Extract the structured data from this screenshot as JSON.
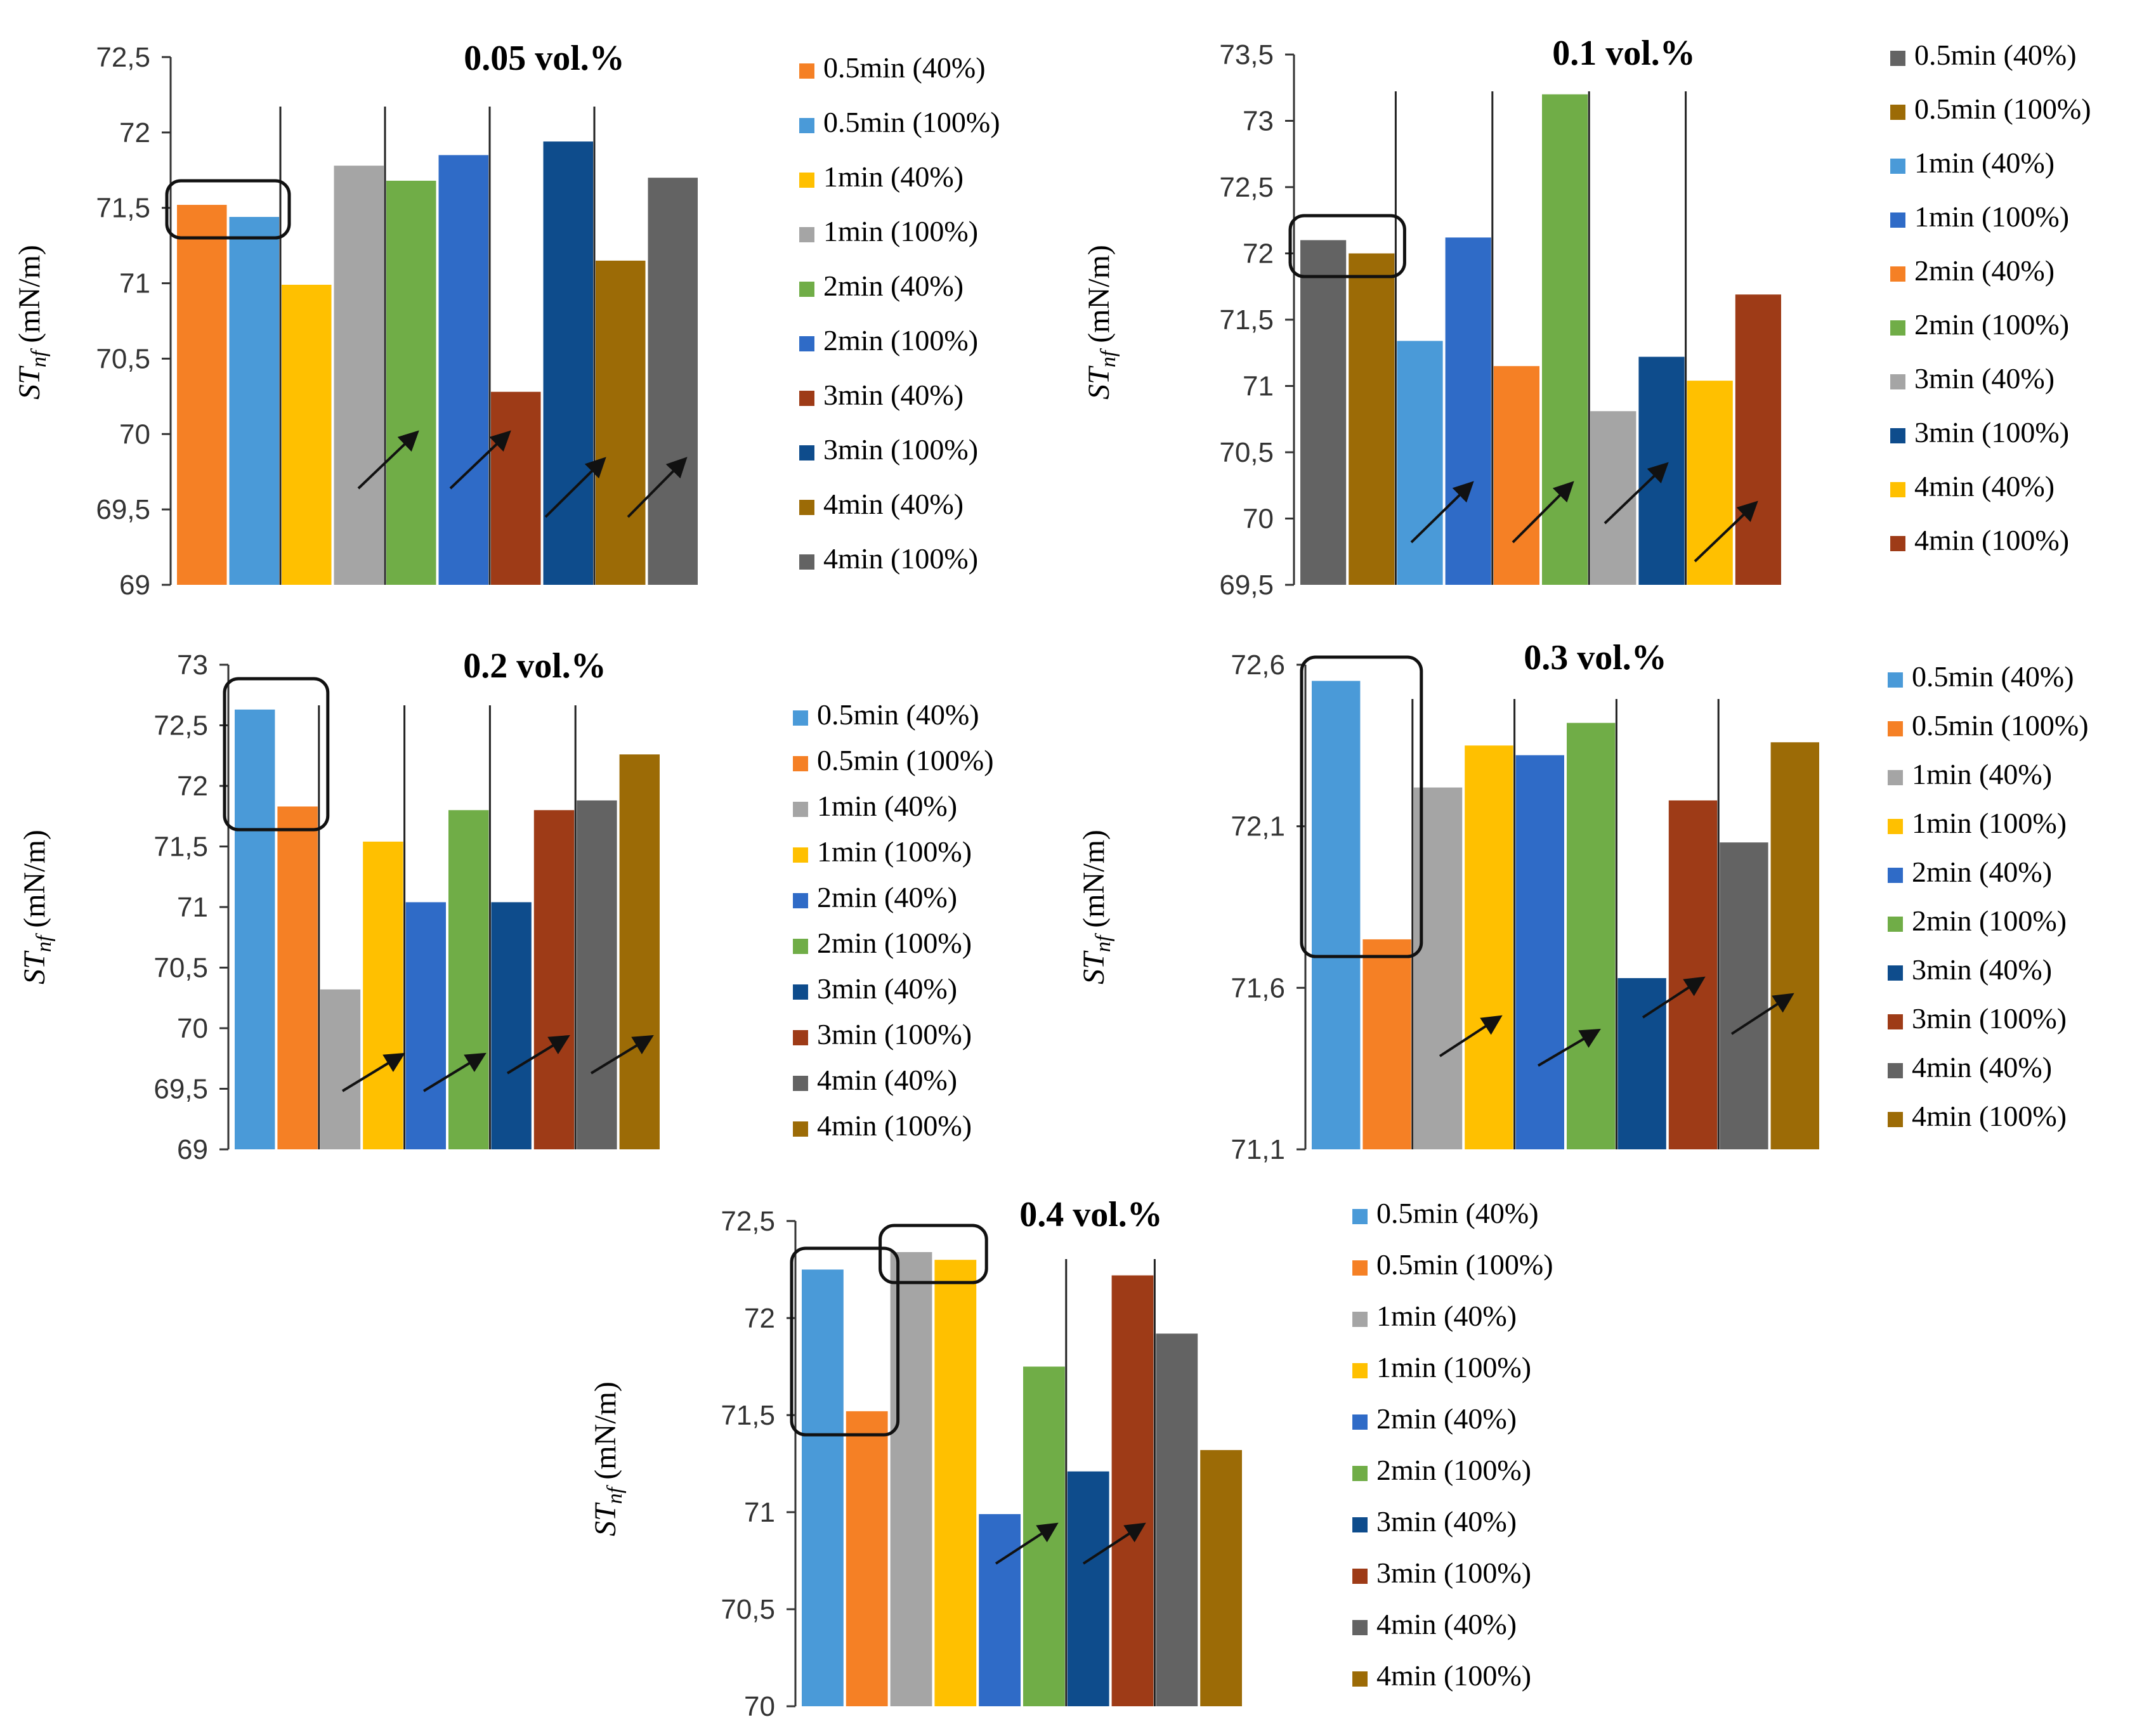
{
  "chart_data": [
    {
      "type": "bar",
      "title": "0.05 vol.%",
      "ylabel_main": "ST",
      "ylabel_sub": "nf",
      "ylabel_unit": " (mN/m)",
      "xlabel": "",
      "ylim": [
        69,
        72.5
      ],
      "yticks": [
        "69",
        "69,5",
        "70",
        "70,5",
        "71",
        "71,5",
        "72",
        "72,5"
      ],
      "series": [
        {
          "name": "0.5min (40%)",
          "value": 71.52,
          "color": "#F58025"
        },
        {
          "name": "0.5min (100%)",
          "value": 71.44,
          "color": "#4A9AD8"
        },
        {
          "name": "1min (40%)",
          "value": 70.99,
          "color": "#FFC000"
        },
        {
          "name": "1min (100%)",
          "value": 71.78,
          "color": "#A5A5A5"
        },
        {
          "name": "2min (40%)",
          "value": 71.68,
          "color": "#70AD47"
        },
        {
          "name": "2min (100%)",
          "value": 71.85,
          "color": "#2F6BC7"
        },
        {
          "name": "3min (40%)",
          "value": 70.28,
          "color": "#9E3B17"
        },
        {
          "name": "3min (100%)",
          "value": 71.94,
          "color": "#0E4C8C"
        },
        {
          "name": "4min (40%)",
          "value": 71.15,
          "color": "#9C6B06"
        },
        {
          "name": "4min (100%)",
          "value": 71.7,
          "color": "#636363"
        }
      ]
    },
    {
      "type": "bar",
      "title": "0.1 vol.%",
      "ylabel_main": "ST",
      "ylabel_sub": "nf",
      "ylabel_unit": " (mN/m)",
      "xlabel": "",
      "ylim": [
        69.5,
        73.5
      ],
      "yticks": [
        "69,5",
        "70",
        "70,5",
        "71",
        "71,5",
        "72",
        "72,5",
        "73",
        "73,5"
      ],
      "series": [
        {
          "name": "0.5min (40%)",
          "value": 72.1,
          "color": "#636363"
        },
        {
          "name": "0.5min (100%)",
          "value": 72.0,
          "color": "#9C6B06"
        },
        {
          "name": "1min (40%)",
          "value": 71.34,
          "color": "#4A9AD8"
        },
        {
          "name": "1min (100%)",
          "value": 72.12,
          "color": "#2F6BC7"
        },
        {
          "name": "2min (40%)",
          "value": 71.15,
          "color": "#F58025"
        },
        {
          "name": "2min (100%)",
          "value": 73.2,
          "color": "#70AD47"
        },
        {
          "name": "3min (40%)",
          "value": 70.81,
          "color": "#A5A5A5"
        },
        {
          "name": "3min (100%)",
          "value": 71.22,
          "color": "#0E4C8C"
        },
        {
          "name": "4min (40%)",
          "value": 71.04,
          "color": "#FFC000"
        },
        {
          "name": "4min (100%)",
          "value": 71.69,
          "color": "#9E3B17"
        }
      ]
    },
    {
      "type": "bar",
      "title": "0.2 vol.%",
      "ylabel_main": "ST",
      "ylabel_sub": "nf",
      "ylabel_unit": " (mN/m)",
      "xlabel": "",
      "ylim": [
        69,
        73
      ],
      "yticks": [
        "69",
        "69,5",
        "70",
        "70,5",
        "71",
        "71,5",
        "72",
        "72,5",
        "73"
      ],
      "series": [
        {
          "name": "0.5min (40%)",
          "value": 72.63,
          "color": "#4A9AD8"
        },
        {
          "name": "0.5min (100%)",
          "value": 71.83,
          "color": "#F58025"
        },
        {
          "name": "1min (40%)",
          "value": 70.32,
          "color": "#A5A5A5"
        },
        {
          "name": "1min (100%)",
          "value": 71.54,
          "color": "#FFC000"
        },
        {
          "name": "2min (40%)",
          "value": 71.04,
          "color": "#2F6BC7"
        },
        {
          "name": "2min (100%)",
          "value": 71.8,
          "color": "#70AD47"
        },
        {
          "name": "3min (40%)",
          "value": 71.04,
          "color": "#0E4C8C"
        },
        {
          "name": "3min (100%)",
          "value": 71.8,
          "color": "#9E3B17"
        },
        {
          "name": "4min (40%)",
          "value": 71.88,
          "color": "#636363"
        },
        {
          "name": "4min (100%)",
          "value": 72.26,
          "color": "#9C6B06"
        }
      ]
    },
    {
      "type": "bar",
      "title": "0.3 vol.%",
      "ylabel_main": "ST",
      "ylabel_sub": "nf",
      "ylabel_unit": " (mN/m)",
      "xlabel": "",
      "ylim": [
        71.1,
        72.6
      ],
      "yticks": [
        "71,1",
        "71,6",
        "72,1",
        "72,6"
      ],
      "series": [
        {
          "name": "0.5min (40%)",
          "value": 72.55,
          "color": "#4A9AD8"
        },
        {
          "name": "0.5min (100%)",
          "value": 71.75,
          "color": "#F58025"
        },
        {
          "name": "1min (40%)",
          "value": 72.22,
          "color": "#A5A5A5"
        },
        {
          "name": "1min (100%)",
          "value": 72.35,
          "color": "#FFC000"
        },
        {
          "name": "2min (40%)",
          "value": 72.32,
          "color": "#2F6BC7"
        },
        {
          "name": "2min (100%)",
          "value": 72.42,
          "color": "#70AD47"
        },
        {
          "name": "3min (40%)",
          "value": 71.63,
          "color": "#0E4C8C"
        },
        {
          "name": "3min (100%)",
          "value": 72.18,
          "color": "#9E3B17"
        },
        {
          "name": "4min (40%)",
          "value": 72.05,
          "color": "#636363"
        },
        {
          "name": "4min (100%)",
          "value": 72.36,
          "color": "#9C6B06"
        }
      ]
    },
    {
      "type": "bar",
      "title": "0.4 vol.%",
      "ylabel_main": "ST",
      "ylabel_sub": "nf",
      "ylabel_unit": " (mN/m)",
      "xlabel": "",
      "ylim": [
        70,
        72.5
      ],
      "yticks": [
        "70",
        "70,5",
        "71",
        "71,5",
        "72",
        "72,5"
      ],
      "series": [
        {
          "name": "0.5min (40%)",
          "value": 72.25,
          "color": "#4A9AD8"
        },
        {
          "name": "0.5min (100%)",
          "value": 71.52,
          "color": "#F58025"
        },
        {
          "name": "1min (40%)",
          "value": 72.34,
          "color": "#A5A5A5"
        },
        {
          "name": "1min (100%)",
          "value": 72.3,
          "color": "#FFC000"
        },
        {
          "name": "2min (40%)",
          "value": 70.99,
          "color": "#2F6BC7"
        },
        {
          "name": "2min (100%)",
          "value": 71.75,
          "color": "#70AD47"
        },
        {
          "name": "3min (40%)",
          "value": 71.21,
          "color": "#0E4C8C"
        },
        {
          "name": "3min (100%)",
          "value": 72.22,
          "color": "#9E3B17"
        },
        {
          "name": "4min (40%)",
          "value": 71.92,
          "color": "#636363"
        },
        {
          "name": "4min (100%)",
          "value": 71.32,
          "color": "#9C6B06"
        }
      ]
    }
  ]
}
